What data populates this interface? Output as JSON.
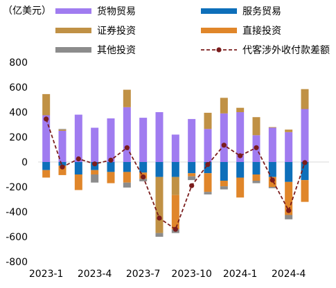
{
  "chart_data": {
    "type": "bar",
    "stacked": true,
    "unit_label": "（亿美元）",
    "ylim": [
      -800,
      800
    ],
    "yticks": [
      800,
      600,
      400,
      200,
      0,
      -200,
      -400,
      -600,
      -800
    ],
    "categories": [
      "2023-1",
      "2023-2",
      "2023-3",
      "2023-4",
      "2023-5",
      "2023-6",
      "2023-7",
      "2023-8",
      "2023-9",
      "2023-10",
      "2023-11",
      "2023-12",
      "2024-1",
      "2024-2",
      "2024-3",
      "2024-4",
      "2024-5",
      "2024-6"
    ],
    "x_tick_labels": [
      {
        "index": 0,
        "label": "2023-1"
      },
      {
        "index": 3,
        "label": "2023-4"
      },
      {
        "index": 6,
        "label": "2023-7"
      },
      {
        "index": 9,
        "label": "2023-10"
      },
      {
        "index": 12,
        "label": "2024-1"
      },
      {
        "index": 15,
        "label": "2024-4"
      }
    ],
    "series": [
      {
        "name": "货物贸易",
        "color": "#A07CF0",
        "values": [
          375,
          250,
          380,
          275,
          350,
          440,
          355,
          400,
          220,
          345,
          265,
          390,
          400,
          215,
          275,
          240,
          425,
          0
        ]
      },
      {
        "name": "服务贸易",
        "color": "#0E6FBA",
        "values": [
          -65,
          -30,
          -100,
          -65,
          -80,
          -80,
          -85,
          -120,
          -120,
          -90,
          -90,
          -150,
          -125,
          -100,
          -120,
          -160,
          -145,
          0
        ]
      },
      {
        "name": "证券投资",
        "color": "#C09145",
        "values": [
          170,
          10,
          0,
          0,
          0,
          140,
          0,
          -450,
          -145,
          0,
          130,
          125,
          35,
          145,
          5,
          20,
          160,
          0
        ]
      },
      {
        "name": "直接投资",
        "color": "#E0862A",
        "values": [
          -60,
          -75,
          -125,
          -35,
          -90,
          -85,
          -50,
          0,
          -275,
          -25,
          -150,
          -45,
          -160,
          -50,
          -80,
          -265,
          -175,
          0
        ]
      },
      {
        "name": "其他投资",
        "color": "#8C8C8C",
        "values": [
          0,
          5,
          0,
          -65,
          0,
          -40,
          -20,
          -30,
          -30,
          -30,
          -20,
          -25,
          0,
          -20,
          -10,
          -35,
          0,
          0
        ]
      }
    ],
    "line_series": {
      "name": "代客涉外收付款差额",
      "color": "#7A1C1C",
      "values": [
        345,
        -40,
        25,
        -15,
        15,
        115,
        -120,
        -450,
        -540,
        -190,
        -20,
        135,
        50,
        115,
        -145,
        -390,
        -5,
        null
      ]
    }
  }
}
